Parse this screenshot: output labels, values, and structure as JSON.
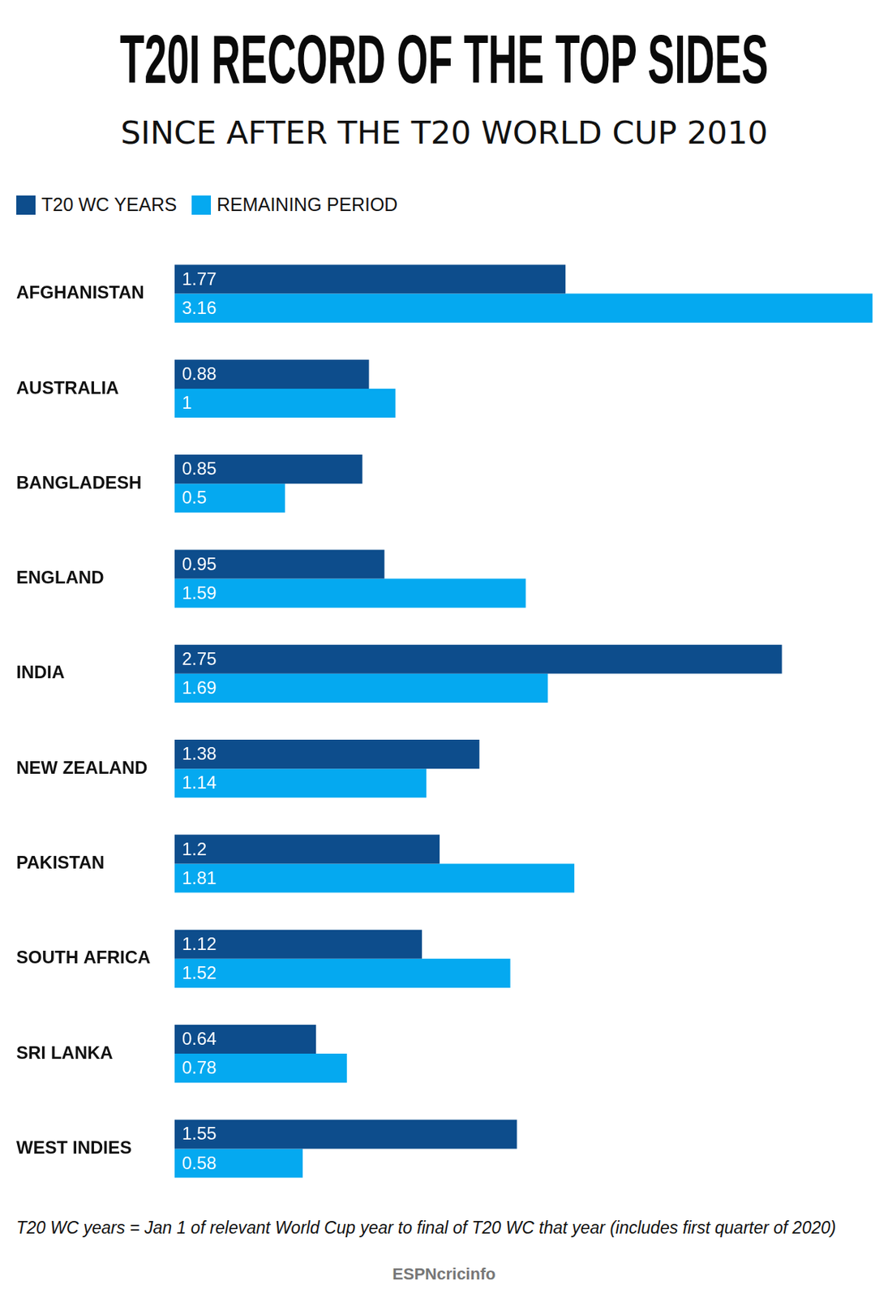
{
  "chart_data": {
    "type": "bar",
    "orientation": "horizontal",
    "title": "T20I RECORD OF THE TOP SIDES",
    "subtitle": "SINCE AFTER THE T20 WORLD CUP 2010",
    "categories": [
      "AFGHANISTAN",
      "AUSTRALIA",
      "BANGLADESH",
      "ENGLAND",
      "INDIA",
      "NEW ZEALAND",
      "PAKISTAN",
      "SOUTH AFRICA",
      "SRI LANKA",
      "WEST INDIES"
    ],
    "series": [
      {
        "name": "T20 WC YEARS",
        "color": "#0d4d8c",
        "values": [
          1.77,
          0.88,
          0.85,
          0.95,
          2.75,
          1.38,
          1.2,
          1.12,
          0.64,
          1.55
        ]
      },
      {
        "name": "REMAINING PERIOD",
        "color": "#05a9f0",
        "values": [
          3.16,
          1,
          0.5,
          1.59,
          1.69,
          1.14,
          1.81,
          1.52,
          0.78,
          0.58
        ]
      }
    ],
    "xlim": [
      0,
      3.16
    ],
    "grid": false,
    "legend": "top-left",
    "data_labels": true,
    "tick_labels": "y",
    "footnote": "T20 WC years = Jan 1 of relevant World Cup year to final of T20 WC that year (includes first quarter of 2020)",
    "source": "ESPNcricinfo"
  }
}
